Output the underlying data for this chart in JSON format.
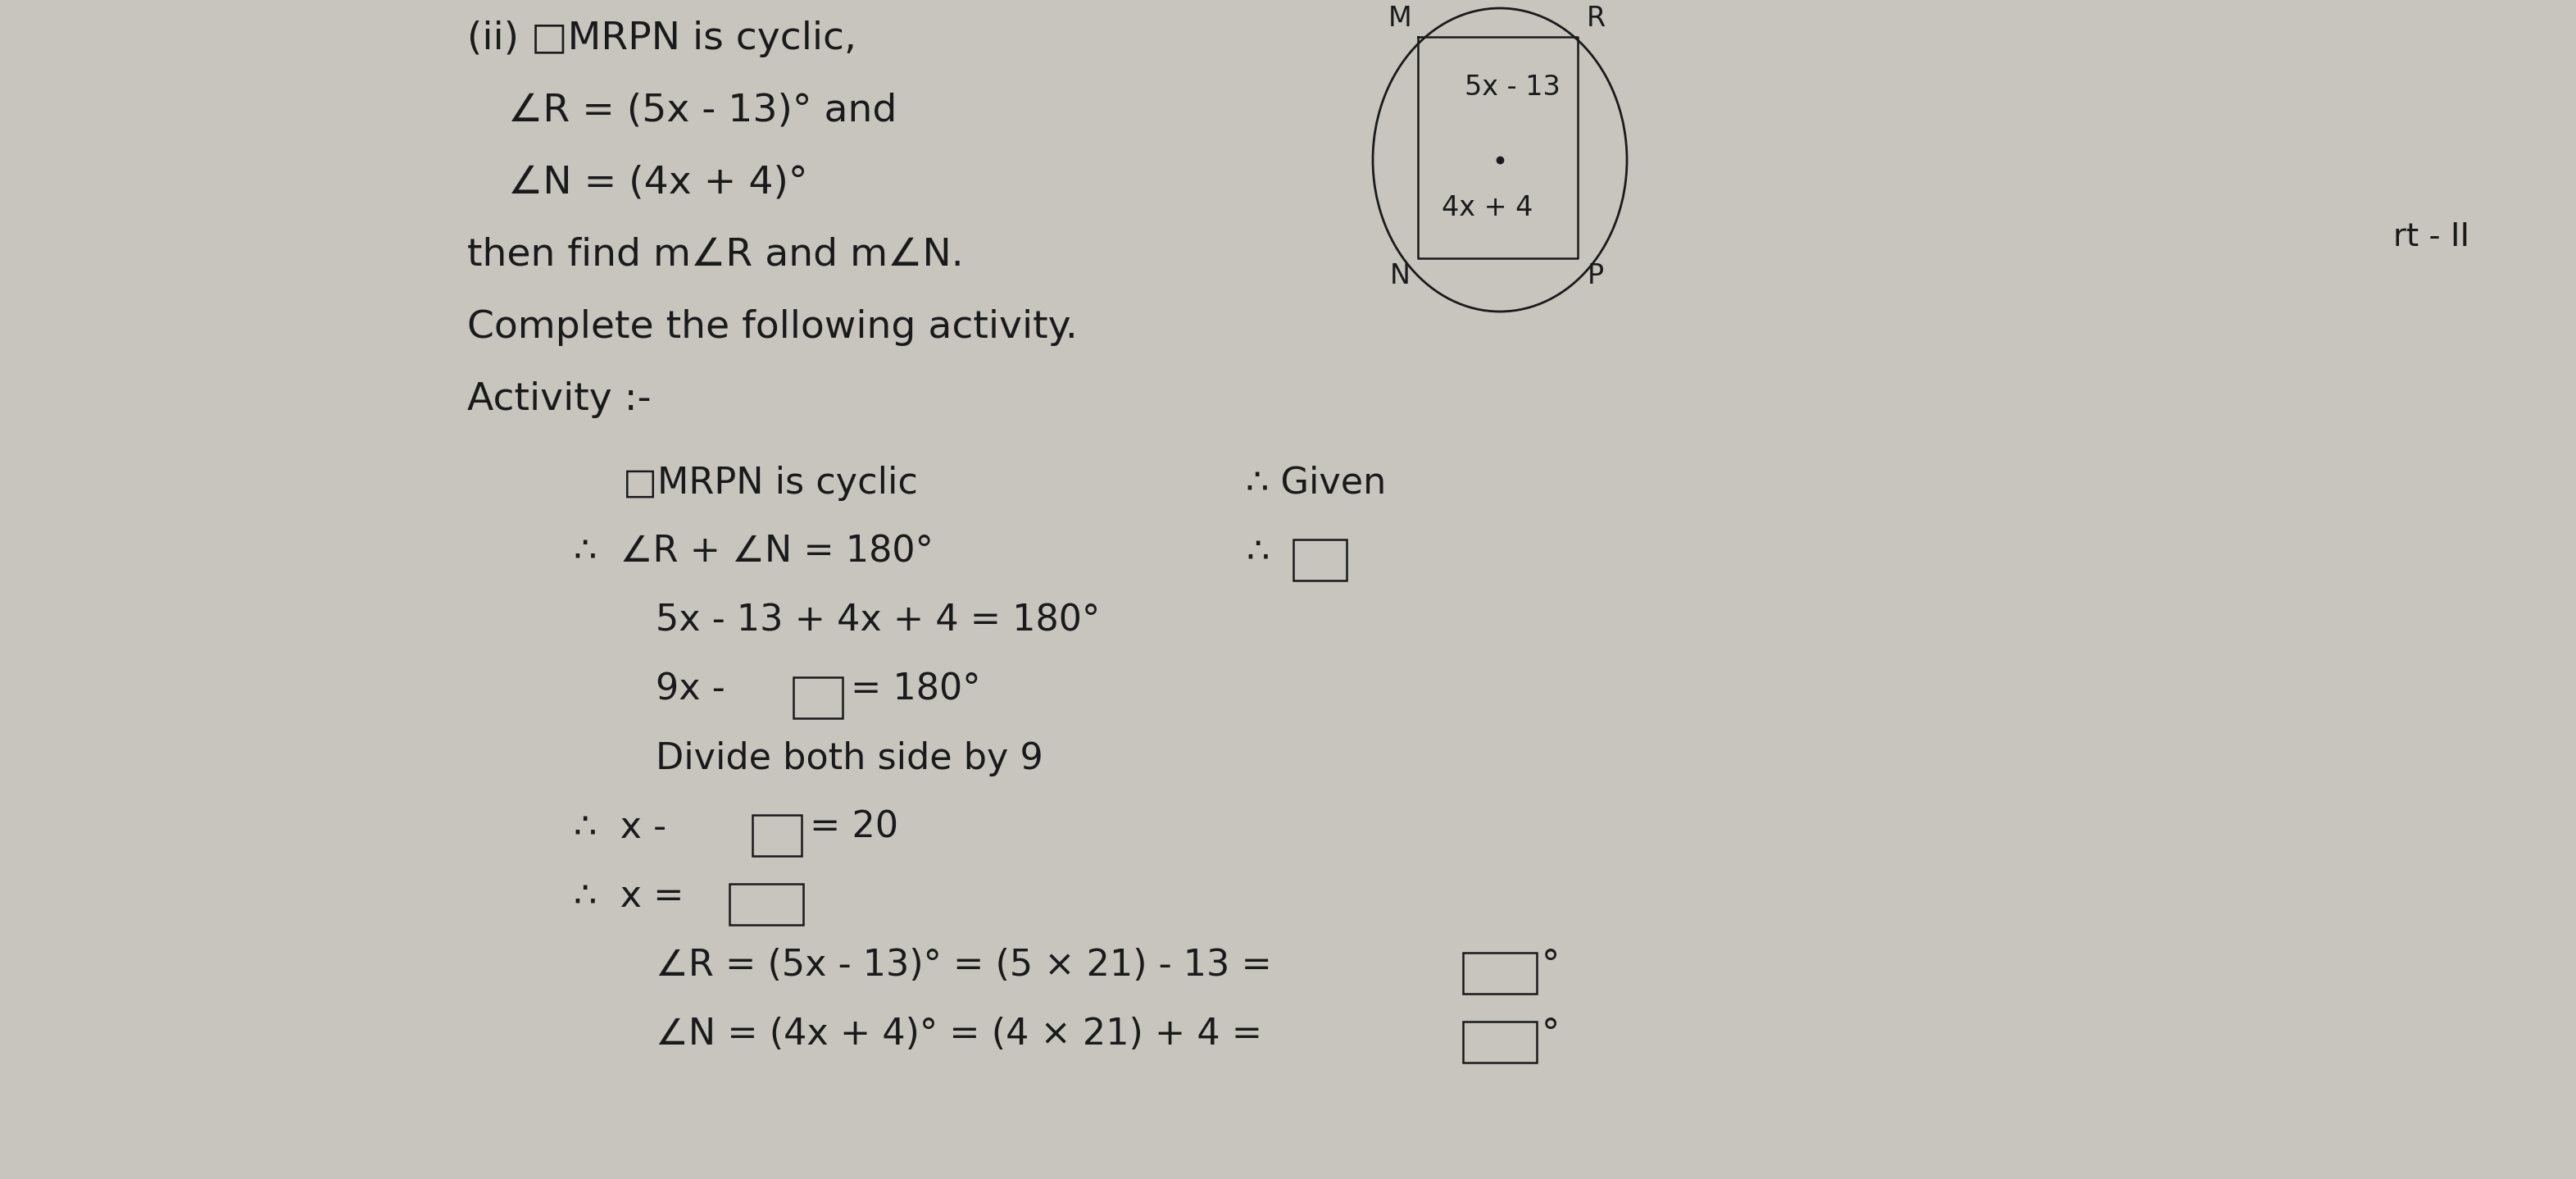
{
  "bg_color": "#c8c5bf",
  "text_color": "#1a1a1a",
  "title_line": "(ii) □MRPN is cyclic,",
  "line1": "∠R = (5x - 13)° and",
  "line2": "∠N = (4x + 4)°",
  "line3": "then find m∠R and m∠N.",
  "line4": "Complete the following activity.",
  "line5": "Activity :-",
  "act_line1_left": "□MRPN is cyclic",
  "act_line1_right": "∴ Given",
  "act_line2_left": "∴  ∠R + ∠N = 180°",
  "act_line3": "5x - 13 + 4x + 4 = 180°",
  "act_line4_left": "9x -",
  "act_line4_right": "= 180°",
  "act_line5": "Divide both side by 9",
  "act_line6_left": "∴  x -",
  "act_line6_right": "= 20",
  "act_line7_left": "∴  x =",
  "act_line8_left": "∠R = (5x - 13)° = (5 × 21) - 13 =",
  "act_line8_right": "°",
  "act_line9_left": "∠N = (4x + 4)° = (4 × 21) + 4 =",
  "act_line9_right": "°",
  "diagram_label_M": "M",
  "diagram_label_R": "R",
  "diagram_label_N": "N",
  "diagram_label_P": "P",
  "diagram_angle_R": "5x - 13",
  "diagram_angle_N": "4x + 4",
  "side_text": "rt - II",
  "font_size_main": 34,
  "font_size_act": 32,
  "font_size_diagram": 26,
  "font_size_diagram_label": 24
}
